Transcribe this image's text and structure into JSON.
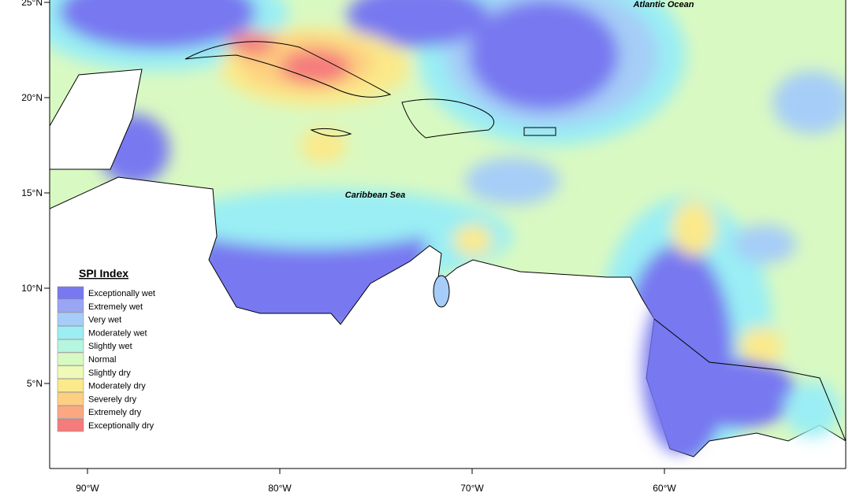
{
  "map": {
    "labels": [
      "Atlantic Ocean",
      "Caribbean Sea"
    ],
    "lat_ticks": [
      {
        "value": 25,
        "label": "25°N"
      },
      {
        "value": 20,
        "label": "20°N"
      },
      {
        "value": 15,
        "label": "15°N"
      },
      {
        "value": 10,
        "label": "10°N"
      },
      {
        "value": 5,
        "label": "5°N"
      }
    ],
    "lon_ticks": [
      {
        "value": -90,
        "label": "90°W"
      },
      {
        "value": -80,
        "label": "80°W"
      },
      {
        "value": -70,
        "label": "70°W"
      },
      {
        "value": -60,
        "label": "60°W"
      }
    ],
    "legend": {
      "title": "SPI Index",
      "items": [
        {
          "label": "Exceptionally wet",
          "color": "#7878f0"
        },
        {
          "label": "Extremely wet",
          "color": "#98a6f4"
        },
        {
          "label": "Very wet",
          "color": "#a6cdf7"
        },
        {
          "label": "Moderately wet",
          "color": "#9aeef4"
        },
        {
          "label": "Slightly wet",
          "color": "#b6f5df"
        },
        {
          "label": "Normal",
          "color": "#d9f9c2"
        },
        {
          "label": "Slightly dry",
          "color": "#eefab6"
        },
        {
          "label": "Moderately dry",
          "color": "#fbe98a"
        },
        {
          "label": "Severely dry",
          "color": "#fdcf80"
        },
        {
          "label": "Extremely dry",
          "color": "#fba882"
        },
        {
          "label": "Exceptionally dry",
          "color": "#f57c7c"
        }
      ]
    }
  }
}
